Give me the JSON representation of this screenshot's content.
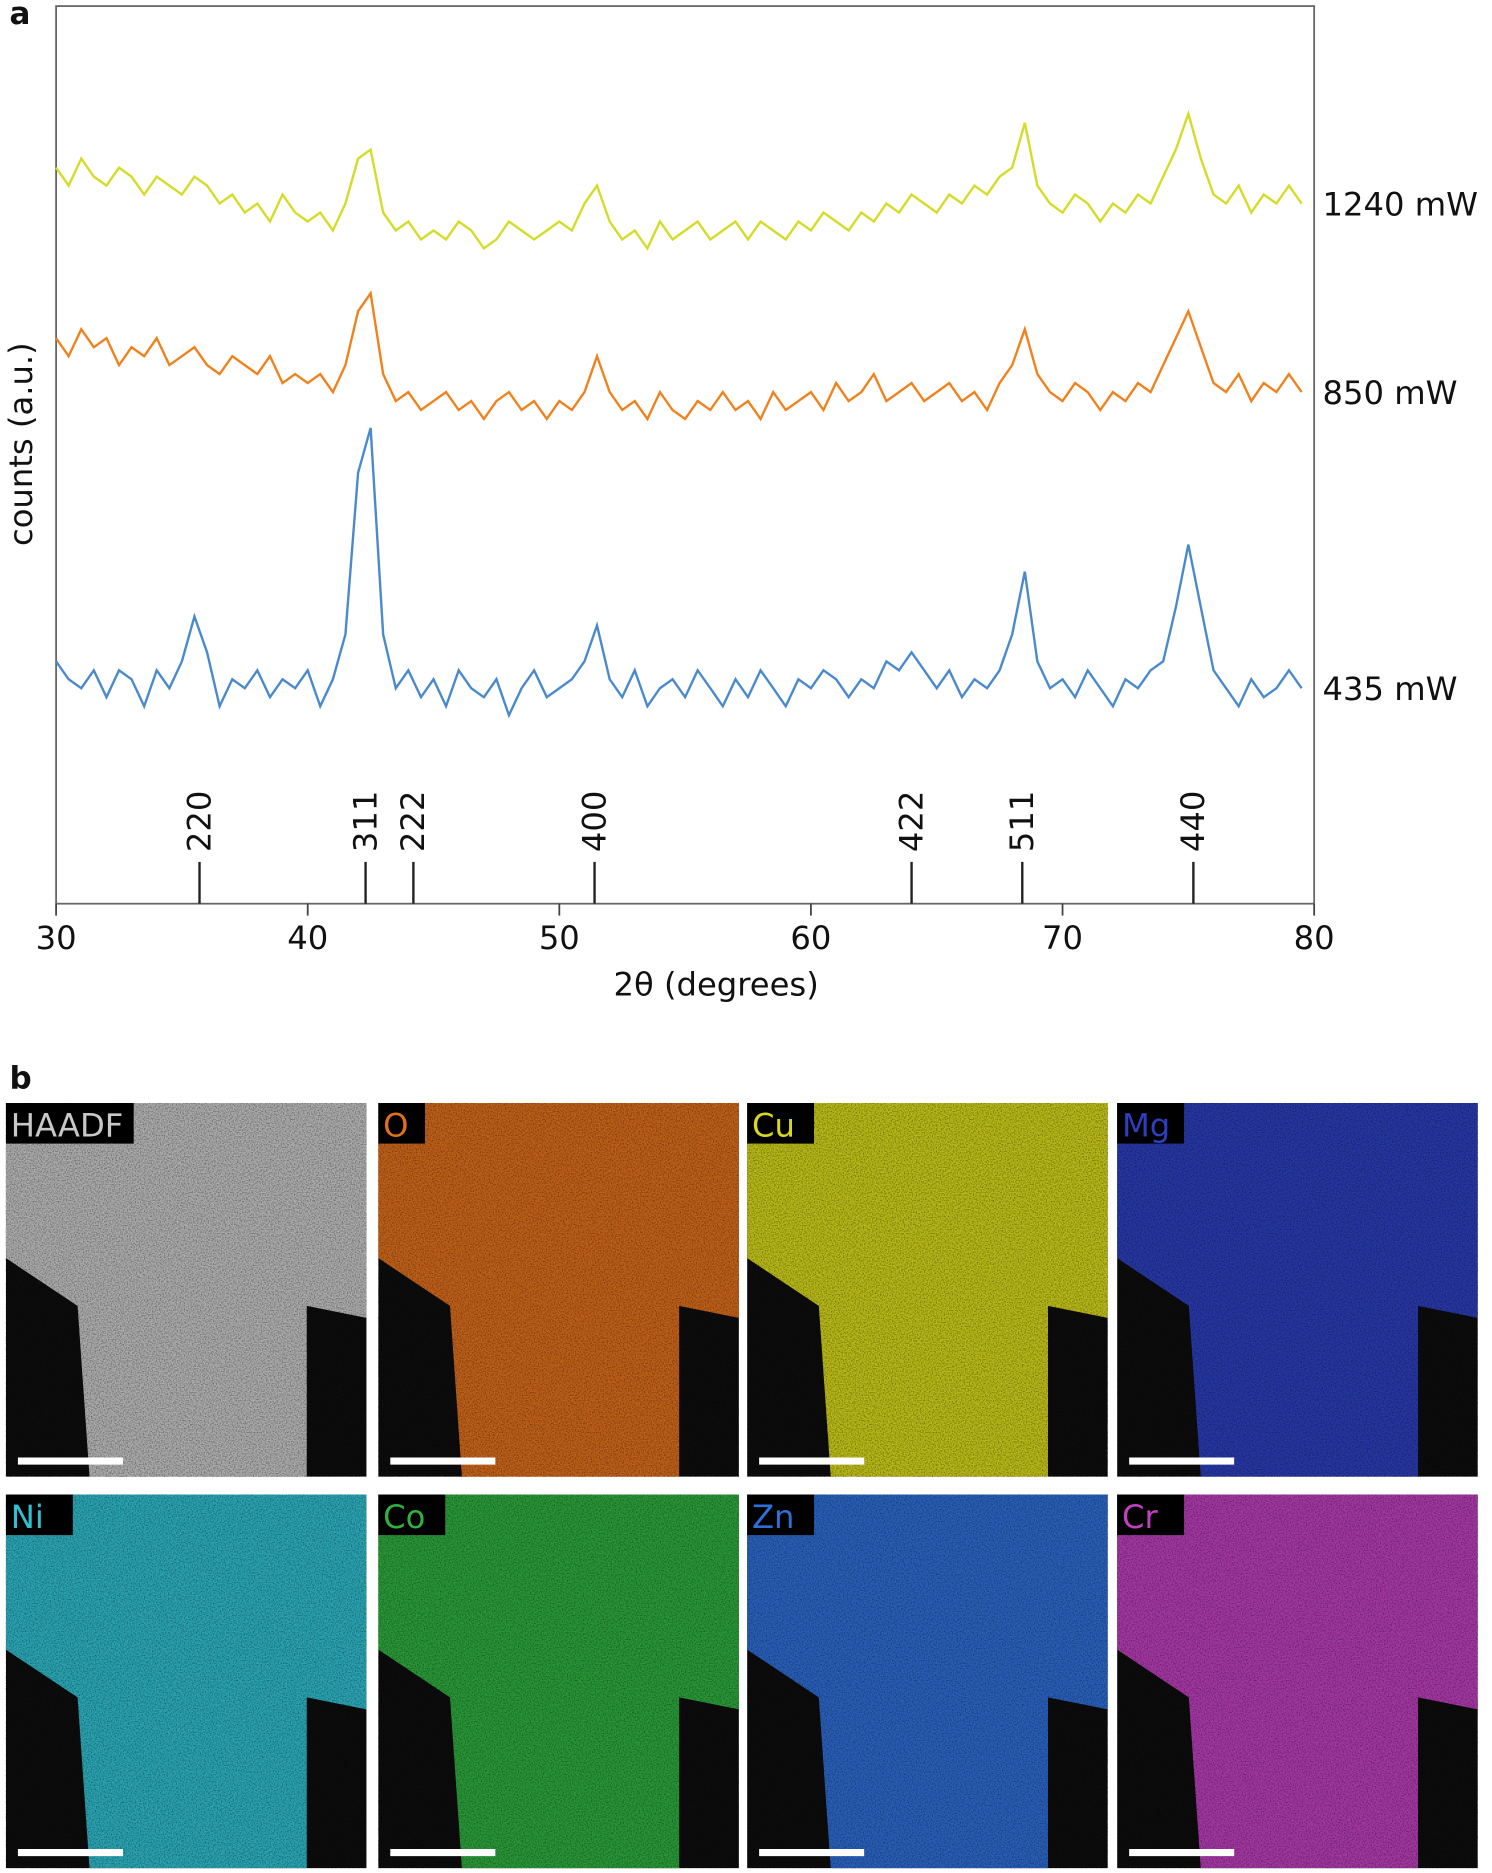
{
  "chart_data": {
    "type": "line",
    "panel_label": "a",
    "xlabel": "2θ (degrees)",
    "ylabel": "counts (a.u.)",
    "xlim": [
      30,
      80
    ],
    "xticks": [
      30,
      40,
      50,
      60,
      70,
      80
    ],
    "ylim": [
      0,
      100
    ],
    "x": [
      30,
      30.5,
      31,
      31.5,
      32,
      32.5,
      33,
      33.5,
      34,
      34.5,
      35,
      35.5,
      36,
      36.5,
      37,
      37.5,
      38,
      38.5,
      39,
      39.5,
      40,
      40.5,
      41,
      41.5,
      42,
      42.5,
      43,
      43.5,
      44,
      44.5,
      45,
      45.5,
      46,
      46.5,
      47,
      47.5,
      48,
      48.5,
      49,
      49.5,
      50,
      50.5,
      51,
      51.5,
      52,
      52.5,
      53,
      53.5,
      54,
      54.5,
      55,
      55.5,
      56,
      56.5,
      57,
      57.5,
      58,
      58.5,
      59,
      59.5,
      60,
      60.5,
      61,
      61.5,
      62,
      62.5,
      63,
      63.5,
      64,
      64.5,
      65,
      65.5,
      66,
      66.5,
      67,
      67.5,
      68,
      68.5,
      69,
      69.5,
      70,
      70.5,
      71,
      71.5,
      72,
      72.5,
      73,
      73.5,
      74,
      74.5,
      75,
      75.5,
      76,
      76.5,
      77,
      77.5,
      78,
      78.5,
      79,
      79.5
    ],
    "series": [
      {
        "name": "1240 mW",
        "color": "#d4dc28",
        "values": [
          82,
          80,
          83,
          81,
          80,
          82,
          81,
          79,
          81,
          80,
          79,
          81,
          80,
          78,
          79,
          77,
          78,
          76,
          79,
          77,
          76,
          77,
          75,
          78,
          83,
          84,
          77,
          75,
          76,
          74,
          75,
          74,
          76,
          75,
          73,
          74,
          76,
          75,
          74,
          75,
          76,
          75,
          78,
          80,
          76,
          74,
          75,
          73,
          76,
          74,
          75,
          76,
          74,
          75,
          76,
          74,
          76,
          75,
          74,
          76,
          75,
          77,
          76,
          75,
          77,
          76,
          78,
          77,
          79,
          78,
          77,
          79,
          78,
          80,
          79,
          81,
          82,
          87,
          80,
          78,
          77,
          79,
          78,
          76,
          78,
          77,
          79,
          78,
          81,
          84,
          88,
          83,
          79,
          78,
          80,
          77,
          79,
          78,
          80,
          78
        ]
      },
      {
        "name": "850 mW",
        "color": "#f0821e",
        "values": [
          63,
          61,
          64,
          62,
          63,
          60,
          62,
          61,
          63,
          60,
          61,
          62,
          60,
          59,
          61,
          60,
          59,
          61,
          58,
          59,
          58,
          59,
          57,
          60,
          66,
          68,
          59,
          56,
          57,
          55,
          56,
          57,
          55,
          56,
          54,
          56,
          57,
          55,
          56,
          54,
          56,
          55,
          57,
          61,
          57,
          55,
          56,
          54,
          57,
          55,
          54,
          56,
          55,
          57,
          55,
          56,
          54,
          57,
          55,
          56,
          57,
          55,
          58,
          56,
          57,
          59,
          56,
          57,
          58,
          56,
          57,
          58,
          56,
          57,
          55,
          58,
          60,
          64,
          59,
          57,
          56,
          58,
          57,
          55,
          57,
          56,
          58,
          57,
          60,
          63,
          66,
          62,
          58,
          57,
          59,
          56,
          58,
          57,
          59,
          57
        ]
      },
      {
        "name": "435 mW",
        "color": "#4a8acc",
        "values": [
          27,
          25,
          24,
          26,
          23,
          26,
          25,
          22,
          26,
          24,
          27,
          32,
          28,
          22,
          25,
          24,
          26,
          23,
          25,
          24,
          26,
          22,
          25,
          30,
          48,
          53,
          30,
          24,
          26,
          23,
          25,
          22,
          26,
          24,
          23,
          25,
          21,
          24,
          26,
          23,
          24,
          25,
          27,
          31,
          25,
          23,
          26,
          22,
          24,
          25,
          23,
          26,
          24,
          22,
          25,
          23,
          26,
          24,
          22,
          25,
          24,
          26,
          25,
          23,
          25,
          24,
          27,
          26,
          28,
          26,
          24,
          26,
          23,
          25,
          24,
          26,
          30,
          37,
          27,
          24,
          25,
          23,
          26,
          24,
          22,
          25,
          24,
          26,
          27,
          33,
          40,
          33,
          26,
          24,
          22,
          25,
          23,
          24,
          26,
          24
        ]
      }
    ],
    "reference_peaks": [
      {
        "x": 35.7,
        "label": "220"
      },
      {
        "x": 42.3,
        "label": "311"
      },
      {
        "x": 44.2,
        "label": "222"
      },
      {
        "x": 51.4,
        "label": "400"
      },
      {
        "x": 64.0,
        "label": "422"
      },
      {
        "x": 68.4,
        "label": "511"
      },
      {
        "x": 75.2,
        "label": "440"
      }
    ]
  },
  "maps_panel": {
    "panel_label": "b",
    "maps": [
      {
        "label": "HAADF",
        "color": "#c8c8c8"
      },
      {
        "label": "O",
        "color": "#e0701c"
      },
      {
        "label": "Cu",
        "color": "#d8d81c"
      },
      {
        "label": "Mg",
        "color": "#2d3fc0"
      },
      {
        "label": "Ni",
        "color": "#30c0d0"
      },
      {
        "label": "Co",
        "color": "#2fb040"
      },
      {
        "label": "Zn",
        "color": "#2f6fd8"
      },
      {
        "label": "Cr",
        "color": "#c040c0"
      }
    ]
  }
}
